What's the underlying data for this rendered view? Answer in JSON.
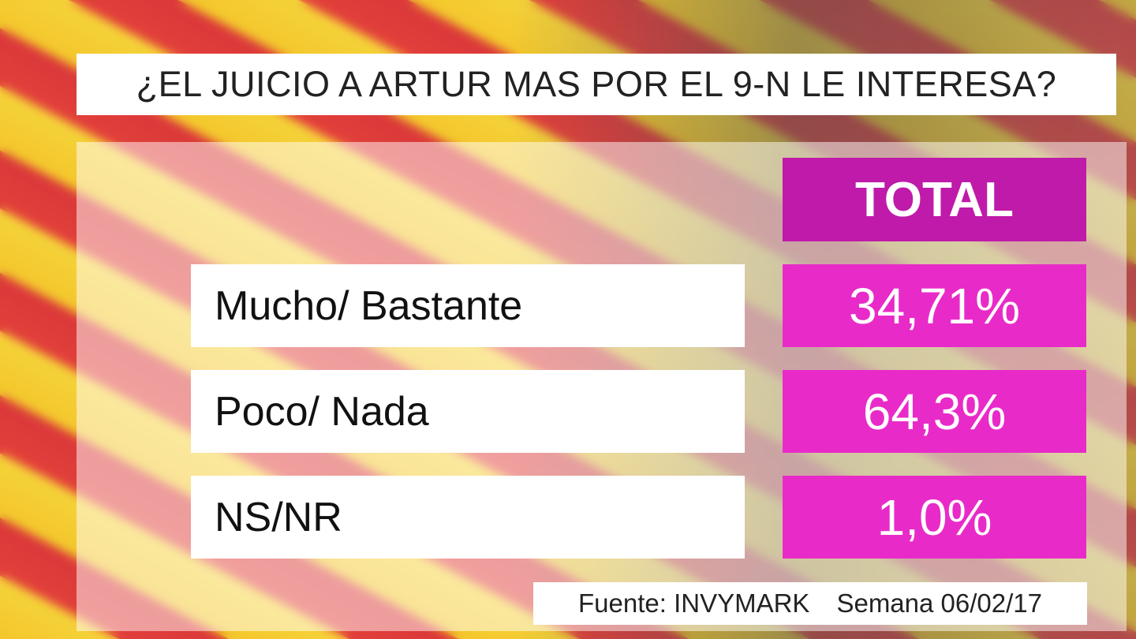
{
  "title": "¿EL JUICIO A ARTUR MAS POR EL 9-N LE INTERESA?",
  "table": {
    "header": "TOTAL",
    "rows": [
      [
        "Mucho/ Bastante",
        "34,71%"
      ],
      [
        "Poco/ Nada",
        "64,3%"
      ],
      [
        "NS/NR",
        "1,0%"
      ]
    ]
  },
  "source": {
    "label": "Fuente: INVYMARK",
    "week": "Semana 06/02/17"
  }
}
